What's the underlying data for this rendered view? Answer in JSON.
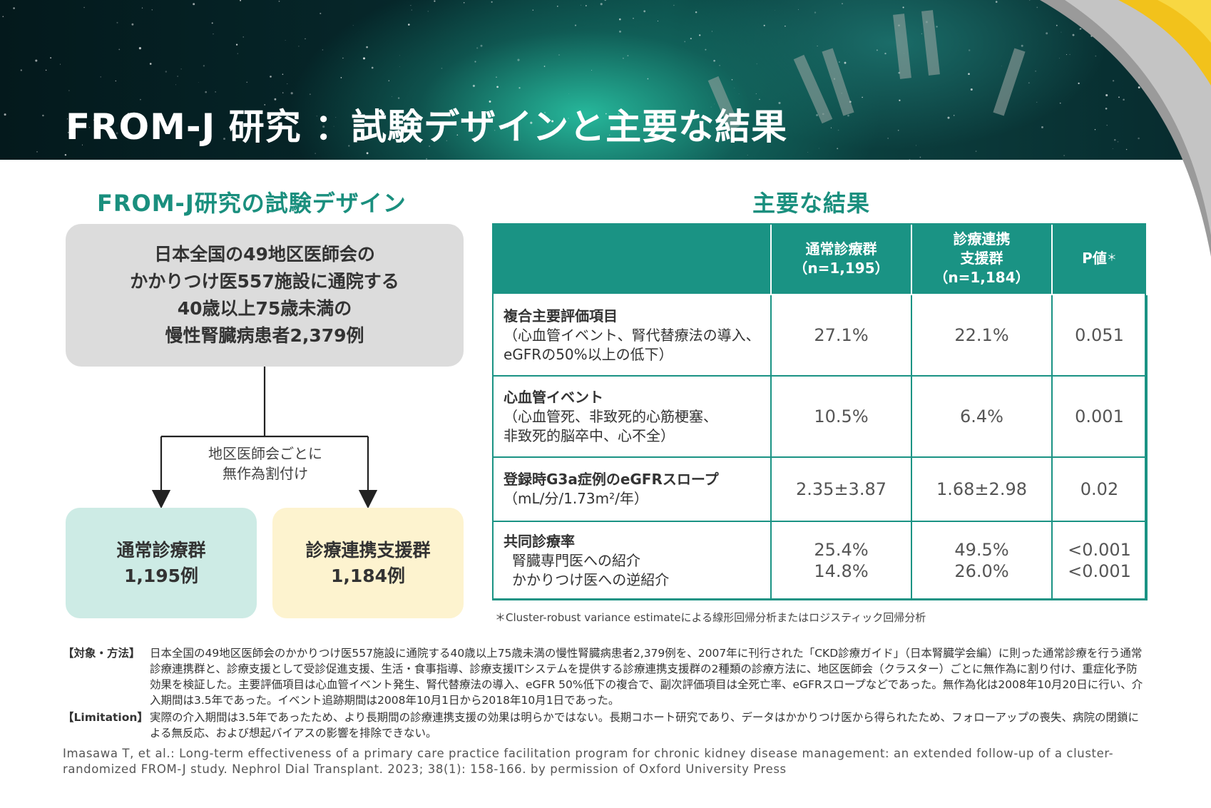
{
  "banner": {
    "title": "FROM-J 研究 ：試験デザインと主要な結果"
  },
  "design": {
    "heading": "FROM-J研究の試験デザイン",
    "population_lines": [
      "日本全国の49地区医師会の",
      "かかりつけ医557施設に通院する",
      "40歳以上75歳未満の",
      "慢性腎臓病患者2,379例"
    ],
    "randomization_lines": [
      "地区医師会ごとに",
      "無作為割付け"
    ],
    "group_usual": {
      "name": "通常診療群",
      "count": "1,195例"
    },
    "group_support": {
      "name": "診療連携支援群",
      "count": "1,184例"
    }
  },
  "results": {
    "heading": "主要な結果",
    "headers": {
      "col1_line1": "通常診療群",
      "col1_line2": "（n=1,195）",
      "col2_line1": "診療連携",
      "col2_line2": "支援群",
      "col2_line3": "（n=1,184）",
      "col3": "P値",
      "col3_mark": "＊"
    },
    "rows": [
      {
        "title": "複合主要評価項目",
        "sub1": "（心血管イベント、腎代替療法の導入、",
        "sub2": "eGFRの50%以上の低下）",
        "usual": "27.1%",
        "support": "22.1%",
        "p": "0.051"
      },
      {
        "title": "心血管イベント",
        "sub1": "（心血管死、非致死的心筋梗塞、",
        "sub2": "非致死的脳卒中、心不全）",
        "usual": "10.5%",
        "support": "6.4%",
        "p": "0.001"
      },
      {
        "title": "登録時G3a症例のeGFRスロープ",
        "sub1": "（mL/分/1.73m²/年）",
        "usual": "2.35±3.87",
        "support": "1.68±2.98",
        "p": "0.02"
      },
      {
        "title": "共同診療率",
        "sub1": "腎臓専門医への紹介",
        "sub2": "かかりつけ医への逆紹介",
        "usual1": "25.4%",
        "usual2": "14.8%",
        "support1": "49.5%",
        "support2": "26.0%",
        "p1": "<0.001",
        "p2": "<0.001"
      }
    ],
    "footnote": "＊Cluster-robust variance estimateによる線形回帰分析またはロジスティック回帰分析"
  },
  "method": {
    "label": "【対象・方法】",
    "text": "日本全国の49地区医師会のかかりつけ医557施設に通院する40歳以上75歳未満の慢性腎臓病患者2,379例を、2007年に刊行された「CKD診療ガイド」（日本腎臓学会編）に則った通常診療を行う通常診療連携群と、診療支援として受診促進支援、生活・食事指導、診療支援ITシステムを提供する診療連携支援群の2種類の診療方法に、地区医師会（クラスター）ごとに無作為に割り付け、重症化予防効果を検証した。主要評価項目は心血管イベント発生、腎代替療法の導入、eGFR 50%低下の複合で、副次評価項目は全死亡率、eGFRスロープなどであった。無作為化は2008年10月20日に行い、介入期間は3.5年であった。イベント追跡期間は2008年10月1日から2018年10月1日であった。"
  },
  "limitation": {
    "label": "【Limitation】",
    "text": "実際の介入期間は3.5年であったため、より長期間の診療連携支援の効果は明らかではない。長期コホート研究であり、データはかかりつけ医から得られたため、フォローアップの喪失、病院の閉鎖による無反応、および想起バイアスの影響を排除できない。"
  },
  "citation": "Imasawa T, et al.: Long-term effectiveness of a primary care practice facilitation program for chronic kidney disease management: an extended follow-up of a cluster-randomized FROM-J study. Nephrol Dial Transplant. 2023; 38(1): 158-166. by permission of Oxford University Press"
}
